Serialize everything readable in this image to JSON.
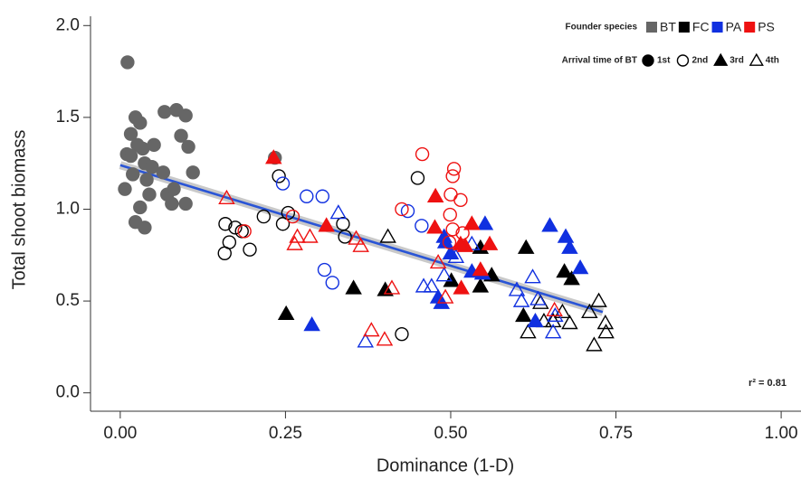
{
  "chart_data": {
    "type": "scatter",
    "x_label": "Dominance (1-D)",
    "y_label": "Total shoot biomass",
    "xlim": [
      -0.045,
      1.03
    ],
    "ylim": [
      -0.1,
      2.09
    ],
    "xticks": [
      {
        "value": 0,
        "label": "0.00"
      },
      {
        "value": 0.25,
        "label": "0.25"
      },
      {
        "value": 0.5,
        "label": "0.50"
      },
      {
        "value": 0.75,
        "label": "0.75"
      },
      {
        "value": 1,
        "label": "1.00"
      }
    ],
    "yticks": [
      {
        "value": 0,
        "label": "0.0"
      },
      {
        "value": 0.5,
        "label": "0.5"
      },
      {
        "value": 1,
        "label": "1.0"
      },
      {
        "value": 1.5,
        "label": "1.5"
      },
      {
        "value": 2,
        "label": "2.0"
      }
    ],
    "legend": {
      "species_title": "Founder species",
      "species": [
        {
          "name": "BT",
          "color": "#666666"
        },
        {
          "name": "FC",
          "color": "#000000"
        },
        {
          "name": "PA",
          "color": "#1030e0"
        },
        {
          "name": "PS",
          "color": "#ee1111"
        }
      ],
      "arrival_title": "Arrival time of BT",
      "arrival": [
        {
          "name": "1st",
          "shape": "circle",
          "filled": true
        },
        {
          "name": "2nd",
          "shape": "circle",
          "filled": false
        },
        {
          "name": "3rd",
          "shape": "triangle",
          "filled": true
        },
        {
          "name": "4th",
          "shape": "triangle",
          "filled": false
        }
      ]
    },
    "annotation": "r² = 0.81",
    "fit": {
      "color": "#2a55d6",
      "x": [
        0,
        0.73
      ],
      "y": [
        1.24,
        0.44
      ]
    },
    "series": [
      {
        "species": "BT",
        "arrival": "1st",
        "x": [
          0.011,
          0.007,
          0.01,
          0.016,
          0.023,
          0.026,
          0.03,
          0.034,
          0.019,
          0.037,
          0.04,
          0.023,
          0.037,
          0.03,
          0.044,
          0.048,
          0.051,
          0.065,
          0.067,
          0.071,
          0.081,
          0.085,
          0.092,
          0.099,
          0.103,
          0.11,
          0.099,
          0.078,
          0.016,
          0.234
        ],
        "y": [
          1.8,
          1.11,
          1.3,
          1.41,
          1.5,
          1.35,
          1.47,
          1.33,
          1.19,
          1.25,
          1.16,
          0.93,
          0.9,
          1.01,
          1.08,
          1.23,
          1.35,
          1.2,
          1.53,
          1.08,
          1.11,
          1.54,
          1.4,
          1.51,
          1.34,
          1.2,
          1.03,
          1.03,
          1.29,
          1.28
        ]
      },
      {
        "species": "FC",
        "arrival": "2nd",
        "x": [
          0.159,
          0.165,
          0.174,
          0.184,
          0.196,
          0.217,
          0.24,
          0.246,
          0.254,
          0.337,
          0.34,
          0.45,
          0.426,
          0.158
        ],
        "y": [
          0.92,
          0.82,
          0.9,
          0.88,
          0.78,
          0.96,
          1.18,
          0.92,
          0.98,
          0.92,
          0.85,
          1.17,
          0.32,
          0.76
        ]
      },
      {
        "species": "FC",
        "arrival": "3rd",
        "x": [
          0.251,
          0.353,
          0.401,
          0.501,
          0.545,
          0.545,
          0.562,
          0.614,
          0.61,
          0.672,
          0.683
        ],
        "y": [
          0.43,
          0.57,
          0.56,
          0.61,
          0.79,
          0.58,
          0.64,
          0.79,
          0.42,
          0.66,
          0.62
        ]
      },
      {
        "species": "FC",
        "arrival": "4th",
        "x": [
          0.405,
          0.617,
          0.636,
          0.655,
          0.669,
          0.68,
          0.71,
          0.717,
          0.641,
          0.724,
          0.734,
          0.735
        ],
        "y": [
          0.85,
          0.33,
          0.49,
          0.39,
          0.44,
          0.38,
          0.44,
          0.26,
          0.39,
          0.5,
          0.38,
          0.33
        ]
      },
      {
        "species": "PA",
        "arrival": "2nd",
        "x": [
          0.246,
          0.282,
          0.306,
          0.309,
          0.321,
          0.435,
          0.456
        ],
        "y": [
          1.14,
          1.07,
          1.07,
          0.67,
          0.6,
          0.99,
          0.91
        ]
      },
      {
        "species": "PA",
        "arrival": "3rd",
        "x": [
          0.29,
          0.49,
          0.492,
          0.481,
          0.486,
          0.5,
          0.532,
          0.548,
          0.552,
          0.628,
          0.674,
          0.68,
          0.65,
          0.696
        ],
        "y": [
          0.37,
          0.85,
          0.82,
          0.52,
          0.49,
          0.76,
          0.66,
          0.65,
          0.92,
          0.39,
          0.85,
          0.79,
          0.91,
          0.68
        ]
      },
      {
        "species": "PA",
        "arrival": "4th",
        "x": [
          0.33,
          0.371,
          0.459,
          0.471,
          0.49,
          0.508,
          0.532,
          0.6,
          0.607,
          0.624,
          0.632,
          0.655,
          0.658
        ],
        "y": [
          0.98,
          0.28,
          0.58,
          0.58,
          0.64,
          0.74,
          0.81,
          0.56,
          0.5,
          0.63,
          0.51,
          0.33,
          0.42
        ]
      },
      {
        "species": "PS",
        "arrival": "2nd",
        "x": [
          0.188,
          0.261,
          0.426,
          0.457,
          0.5,
          0.503,
          0.505,
          0.499,
          0.503,
          0.515,
          0.518,
          0.498
        ],
        "y": [
          0.88,
          0.96,
          1.0,
          1.3,
          1.08,
          1.18,
          1.22,
          0.97,
          0.89,
          1.05,
          0.87,
          0.82
        ]
      },
      {
        "species": "PS",
        "arrival": "3rd",
        "x": [
          0.232,
          0.312,
          0.477,
          0.476,
          0.522,
          0.532,
          0.545,
          0.516,
          0.559,
          0.515
        ],
        "y": [
          1.28,
          0.91,
          1.07,
          0.9,
          0.8,
          0.92,
          0.67,
          0.57,
          0.81,
          0.81
        ]
      },
      {
        "species": "PS",
        "arrival": "4th",
        "x": [
          0.161,
          0.268,
          0.264,
          0.287,
          0.357,
          0.364,
          0.38,
          0.4,
          0.411,
          0.481,
          0.492,
          0.657
        ],
        "y": [
          1.06,
          0.85,
          0.81,
          0.85,
          0.84,
          0.8,
          0.34,
          0.29,
          0.57,
          0.71,
          0.52,
          0.45
        ]
      }
    ]
  }
}
